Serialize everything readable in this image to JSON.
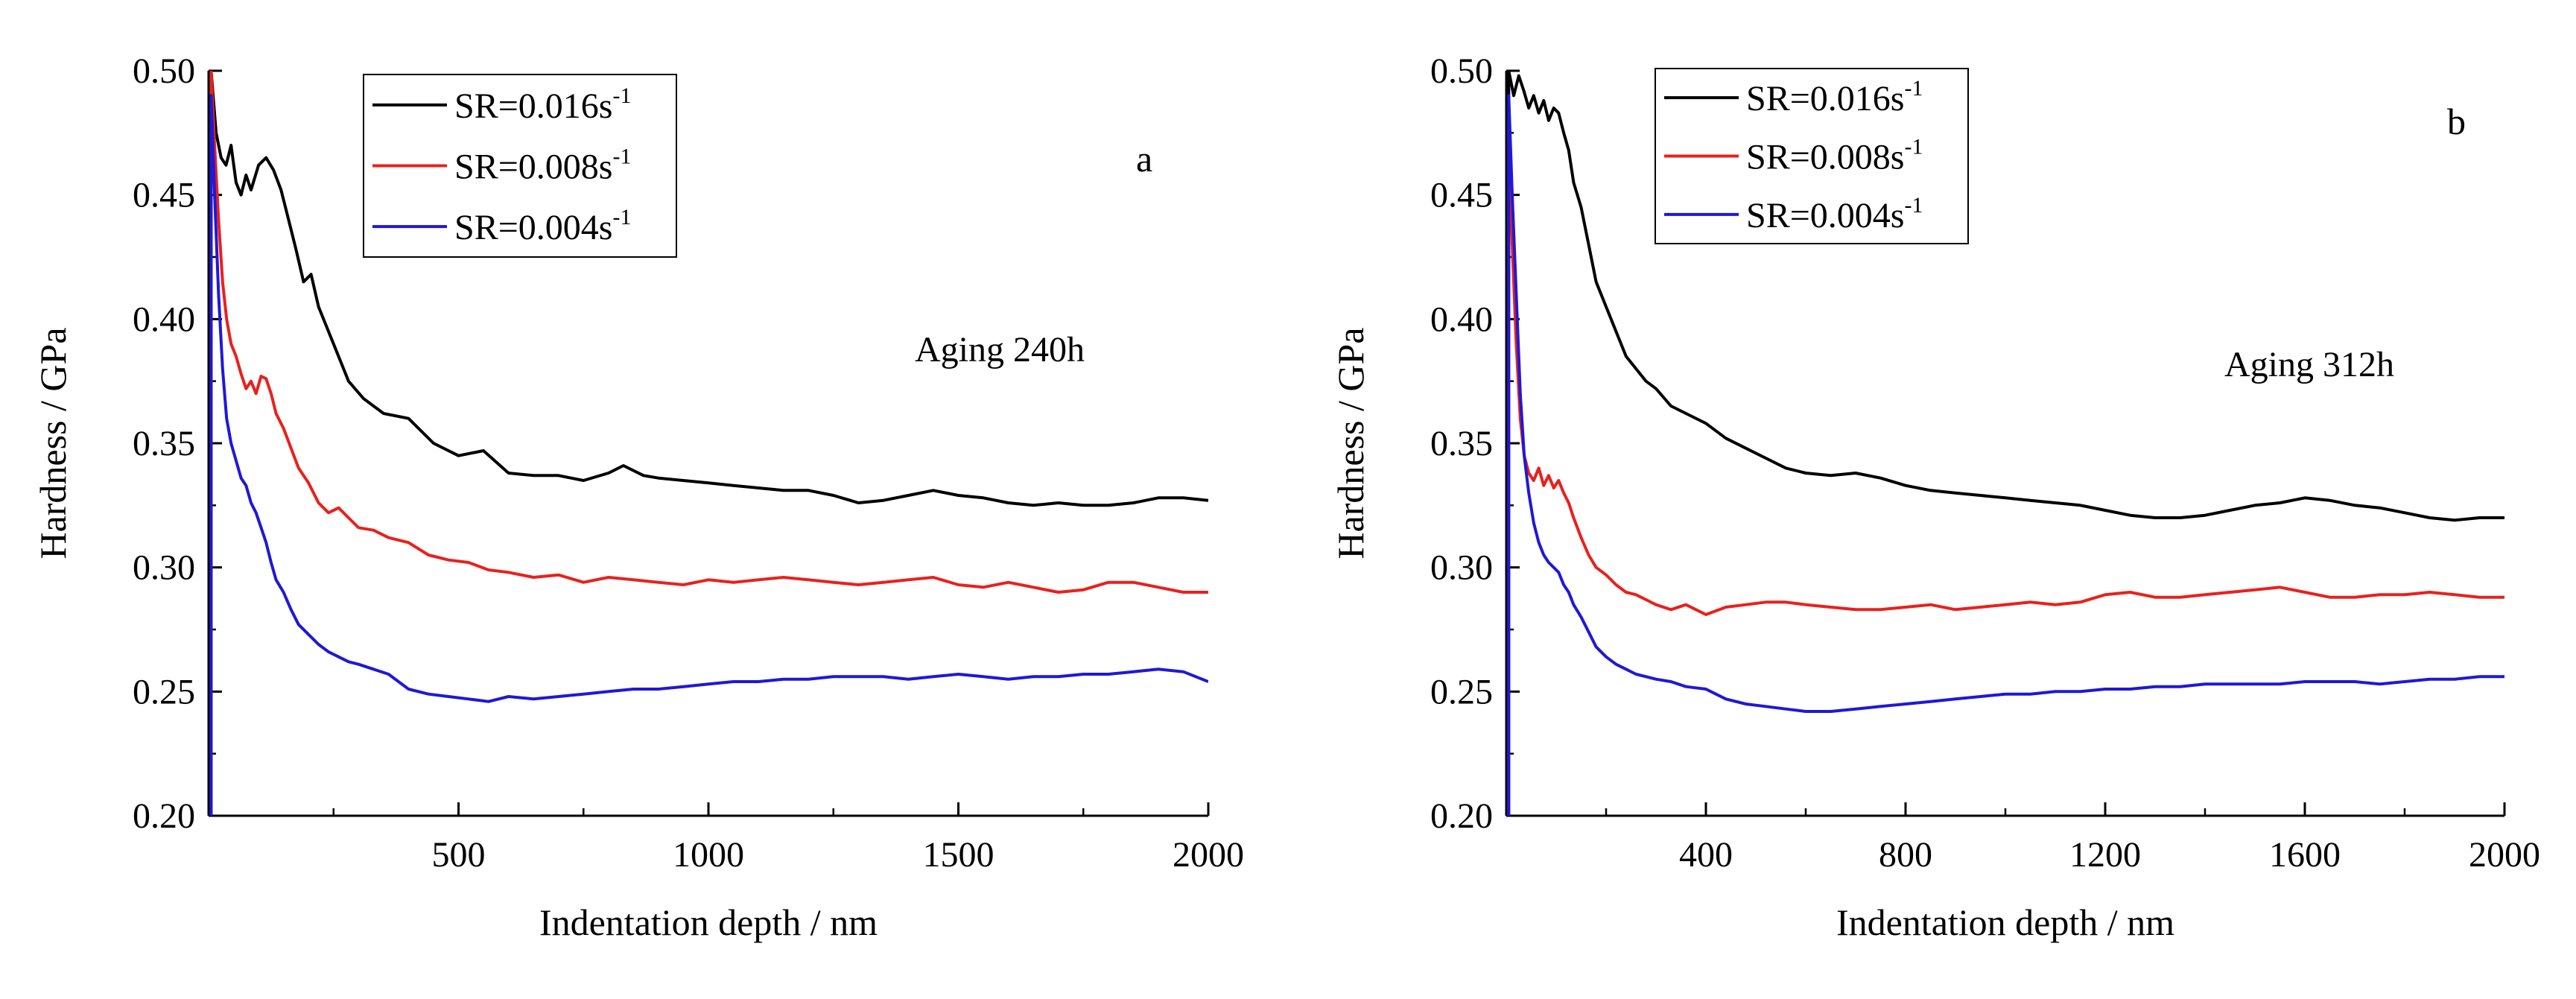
{
  "figure": {
    "axis_color": "#000000",
    "series_colors": {
      "black": "#000000",
      "red": "#e8211d",
      "blue": "#1f18d6"
    }
  },
  "chart_data": [
    {
      "type": "line",
      "panel_label": "a",
      "annotation": "Aging 240h",
      "xlabel": "Indentation depth / nm",
      "ylabel": "Hardness / GPa",
      "xlim": [
        0,
        2000
      ],
      "ylim": [
        0.2,
        0.5
      ],
      "xticks": [
        500,
        1000,
        1500,
        2000
      ],
      "xtick_labels": [
        "500",
        "1000",
        "1500",
        "2000"
      ],
      "yticks": [
        0.2,
        0.25,
        0.3,
        0.35,
        0.4,
        0.45,
        0.5
      ],
      "ytick_labels": [
        "0.20",
        "0.25",
        "0.30",
        "0.35",
        "0.40",
        "0.45",
        "0.50"
      ],
      "legend": {
        "placement": "top-left",
        "entries": [
          {
            "prefix": "SR=0.016s",
            "sup": "-1"
          },
          {
            "prefix": "SR=0.008s",
            "sup": "-1"
          },
          {
            "prefix": "SR=0.004s",
            "sup": "-1"
          }
        ]
      },
      "series": [
        {
          "name": "SR=0.016s-1",
          "color_key": "black",
          "x": [
            5,
            15,
            25,
            35,
            45,
            55,
            65,
            75,
            85,
            100,
            115,
            130,
            145,
            160,
            175,
            190,
            205,
            220,
            250,
            280,
            310,
            350,
            400,
            450,
            500,
            550,
            600,
            650,
            700,
            750,
            800,
            830,
            870,
            900,
            950,
            1000,
            1050,
            1100,
            1150,
            1200,
            1250,
            1300,
            1350,
            1400,
            1450,
            1500,
            1550,
            1600,
            1650,
            1700,
            1750,
            1800,
            1850,
            1900,
            1950,
            2000
          ],
          "y": [
            0.5,
            0.475,
            0.465,
            0.462,
            0.47,
            0.455,
            0.45,
            0.458,
            0.452,
            0.462,
            0.465,
            0.46,
            0.452,
            0.44,
            0.428,
            0.415,
            0.418,
            0.405,
            0.39,
            0.375,
            0.368,
            0.362,
            0.36,
            0.35,
            0.345,
            0.347,
            0.338,
            0.337,
            0.337,
            0.335,
            0.338,
            0.341,
            0.337,
            0.336,
            0.335,
            0.334,
            0.333,
            0.332,
            0.331,
            0.331,
            0.329,
            0.326,
            0.327,
            0.329,
            0.331,
            0.329,
            0.328,
            0.326,
            0.325,
            0.326,
            0.325,
            0.325,
            0.326,
            0.328,
            0.328,
            0.327
          ]
        },
        {
          "name": "SR=0.008s-1",
          "color_key": "red",
          "x": [
            5,
            12,
            20,
            28,
            36,
            45,
            55,
            65,
            75,
            85,
            95,
            105,
            115,
            125,
            135,
            150,
            165,
            180,
            200,
            220,
            240,
            260,
            280,
            300,
            330,
            360,
            400,
            440,
            480,
            520,
            560,
            600,
            650,
            700,
            750,
            800,
            850,
            900,
            950,
            1000,
            1050,
            1100,
            1150,
            1200,
            1250,
            1300,
            1350,
            1400,
            1450,
            1500,
            1550,
            1600,
            1650,
            1700,
            1750,
            1800,
            1850,
            1900,
            1950,
            2000
          ],
          "y": [
            0.5,
            0.47,
            0.44,
            0.415,
            0.4,
            0.39,
            0.385,
            0.378,
            0.372,
            0.375,
            0.37,
            0.377,
            0.376,
            0.37,
            0.362,
            0.356,
            0.348,
            0.34,
            0.334,
            0.326,
            0.322,
            0.324,
            0.32,
            0.316,
            0.315,
            0.312,
            0.31,
            0.305,
            0.303,
            0.302,
            0.299,
            0.298,
            0.296,
            0.297,
            0.294,
            0.296,
            0.295,
            0.294,
            0.293,
            0.295,
            0.294,
            0.295,
            0.296,
            0.295,
            0.294,
            0.293,
            0.294,
            0.295,
            0.296,
            0.293,
            0.292,
            0.294,
            0.292,
            0.29,
            0.291,
            0.294,
            0.294,
            0.292,
            0.29,
            0.29
          ]
        },
        {
          "name": "SR=0.004s-1",
          "color_key": "blue",
          "x": [
            5,
            12,
            20,
            28,
            36,
            45,
            55,
            65,
            75,
            85,
            95,
            105,
            115,
            125,
            135,
            150,
            165,
            180,
            200,
            220,
            240,
            260,
            280,
            300,
            330,
            360,
            400,
            440,
            480,
            520,
            560,
            600,
            650,
            700,
            750,
            800,
            850,
            900,
            950,
            1000,
            1050,
            1100,
            1150,
            1200,
            1250,
            1300,
            1350,
            1400,
            1450,
            1500,
            1550,
            1600,
            1650,
            1700,
            1750,
            1800,
            1850,
            1900,
            1950,
            2000
          ],
          "y": [
            0.49,
            0.45,
            0.41,
            0.38,
            0.36,
            0.35,
            0.343,
            0.336,
            0.333,
            0.326,
            0.322,
            0.316,
            0.31,
            0.302,
            0.295,
            0.29,
            0.283,
            0.277,
            0.273,
            0.269,
            0.266,
            0.264,
            0.262,
            0.261,
            0.259,
            0.257,
            0.251,
            0.249,
            0.248,
            0.247,
            0.246,
            0.248,
            0.247,
            0.248,
            0.249,
            0.25,
            0.251,
            0.251,
            0.252,
            0.253,
            0.254,
            0.254,
            0.255,
            0.255,
            0.256,
            0.256,
            0.256,
            0.255,
            0.256,
            0.257,
            0.256,
            0.255,
            0.256,
            0.256,
            0.257,
            0.257,
            0.258,
            0.259,
            0.258,
            0.254
          ]
        }
      ]
    },
    {
      "type": "line",
      "panel_label": "b",
      "annotation": "Aging 312h",
      "xlabel": "Indentation depth / nm",
      "ylabel": "Hardness / GPa",
      "xlim": [
        0,
        2000
      ],
      "ylim": [
        0.2,
        0.5
      ],
      "xticks": [
        400,
        800,
        1200,
        1600,
        2000
      ],
      "xtick_labels": [
        "400",
        "800",
        "1200",
        "1600",
        "2000"
      ],
      "yticks": [
        0.2,
        0.25,
        0.3,
        0.35,
        0.4,
        0.45,
        0.5
      ],
      "ytick_labels": [
        "0.20",
        "0.25",
        "0.30",
        "0.35",
        "0.40",
        "0.45",
        "0.50"
      ],
      "legend": {
        "placement": "top-left",
        "entries": [
          {
            "prefix": "SR=0.016s",
            "sup": "-1"
          },
          {
            "prefix": "SR=0.008s",
            "sup": "-1"
          },
          {
            "prefix": "SR=0.004s",
            "sup": "-1"
          }
        ]
      },
      "series": [
        {
          "name": "SR=0.016s-1",
          "color_key": "black",
          "x": [
            5,
            15,
            25,
            35,
            45,
            55,
            65,
            75,
            85,
            95,
            105,
            115,
            125,
            135,
            150,
            165,
            180,
            200,
            220,
            240,
            260,
            280,
            300,
            330,
            360,
            400,
            440,
            480,
            520,
            560,
            600,
            650,
            700,
            750,
            800,
            850,
            900,
            950,
            1000,
            1050,
            1100,
            1150,
            1200,
            1250,
            1300,
            1350,
            1400,
            1450,
            1500,
            1550,
            1600,
            1650,
            1700,
            1750,
            1800,
            1850,
            1900,
            1950,
            2000
          ],
          "y": [
            0.5,
            0.49,
            0.498,
            0.492,
            0.485,
            0.49,
            0.483,
            0.488,
            0.48,
            0.485,
            0.483,
            0.475,
            0.468,
            0.455,
            0.445,
            0.43,
            0.415,
            0.405,
            0.395,
            0.385,
            0.38,
            0.375,
            0.372,
            0.365,
            0.362,
            0.358,
            0.352,
            0.348,
            0.344,
            0.34,
            0.338,
            0.337,
            0.338,
            0.336,
            0.333,
            0.331,
            0.33,
            0.329,
            0.328,
            0.327,
            0.326,
            0.325,
            0.323,
            0.321,
            0.32,
            0.32,
            0.321,
            0.323,
            0.325,
            0.326,
            0.328,
            0.327,
            0.325,
            0.324,
            0.322,
            0.32,
            0.319,
            0.32,
            0.32
          ]
        },
        {
          "name": "SR=0.008s-1",
          "color_key": "red",
          "x": [
            5,
            12,
            20,
            28,
            36,
            45,
            55,
            65,
            75,
            85,
            95,
            105,
            115,
            125,
            135,
            150,
            165,
            180,
            200,
            220,
            240,
            260,
            280,
            300,
            330,
            360,
            400,
            440,
            480,
            520,
            560,
            600,
            650,
            700,
            750,
            800,
            850,
            900,
            950,
            1000,
            1050,
            1100,
            1150,
            1200,
            1250,
            1300,
            1350,
            1400,
            1450,
            1500,
            1550,
            1600,
            1650,
            1700,
            1750,
            1800,
            1850,
            1900,
            1950,
            2000
          ],
          "y": [
            0.48,
            0.43,
            0.39,
            0.36,
            0.345,
            0.338,
            0.335,
            0.34,
            0.333,
            0.337,
            0.332,
            0.335,
            0.33,
            0.326,
            0.32,
            0.312,
            0.305,
            0.3,
            0.297,
            0.293,
            0.29,
            0.289,
            0.287,
            0.285,
            0.283,
            0.285,
            0.281,
            0.284,
            0.285,
            0.286,
            0.286,
            0.285,
            0.284,
            0.283,
            0.283,
            0.284,
            0.285,
            0.283,
            0.284,
            0.285,
            0.286,
            0.285,
            0.286,
            0.289,
            0.29,
            0.288,
            0.288,
            0.289,
            0.29,
            0.291,
            0.292,
            0.29,
            0.288,
            0.288,
            0.289,
            0.289,
            0.29,
            0.289,
            0.288,
            0.288
          ]
        },
        {
          "name": "SR=0.004s-1",
          "color_key": "blue",
          "x": [
            5,
            12,
            20,
            28,
            36,
            45,
            55,
            65,
            75,
            85,
            95,
            105,
            115,
            125,
            135,
            150,
            165,
            180,
            200,
            220,
            240,
            260,
            280,
            300,
            330,
            360,
            400,
            440,
            480,
            520,
            560,
            600,
            650,
            700,
            750,
            800,
            850,
            900,
            950,
            1000,
            1050,
            1100,
            1150,
            1200,
            1250,
            1300,
            1350,
            1400,
            1450,
            1500,
            1550,
            1600,
            1650,
            1700,
            1750,
            1800,
            1850,
            1900,
            1950,
            2000
          ],
          "y": [
            0.49,
            0.45,
            0.41,
            0.37,
            0.345,
            0.33,
            0.318,
            0.31,
            0.305,
            0.302,
            0.3,
            0.298,
            0.293,
            0.29,
            0.285,
            0.28,
            0.274,
            0.268,
            0.264,
            0.261,
            0.259,
            0.257,
            0.256,
            0.255,
            0.254,
            0.252,
            0.251,
            0.247,
            0.245,
            0.244,
            0.243,
            0.242,
            0.242,
            0.243,
            0.244,
            0.245,
            0.246,
            0.247,
            0.248,
            0.249,
            0.249,
            0.25,
            0.25,
            0.251,
            0.251,
            0.252,
            0.252,
            0.253,
            0.253,
            0.253,
            0.253,
            0.254,
            0.254,
            0.254,
            0.253,
            0.254,
            0.255,
            0.255,
            0.256,
            0.256
          ]
        }
      ]
    }
  ]
}
